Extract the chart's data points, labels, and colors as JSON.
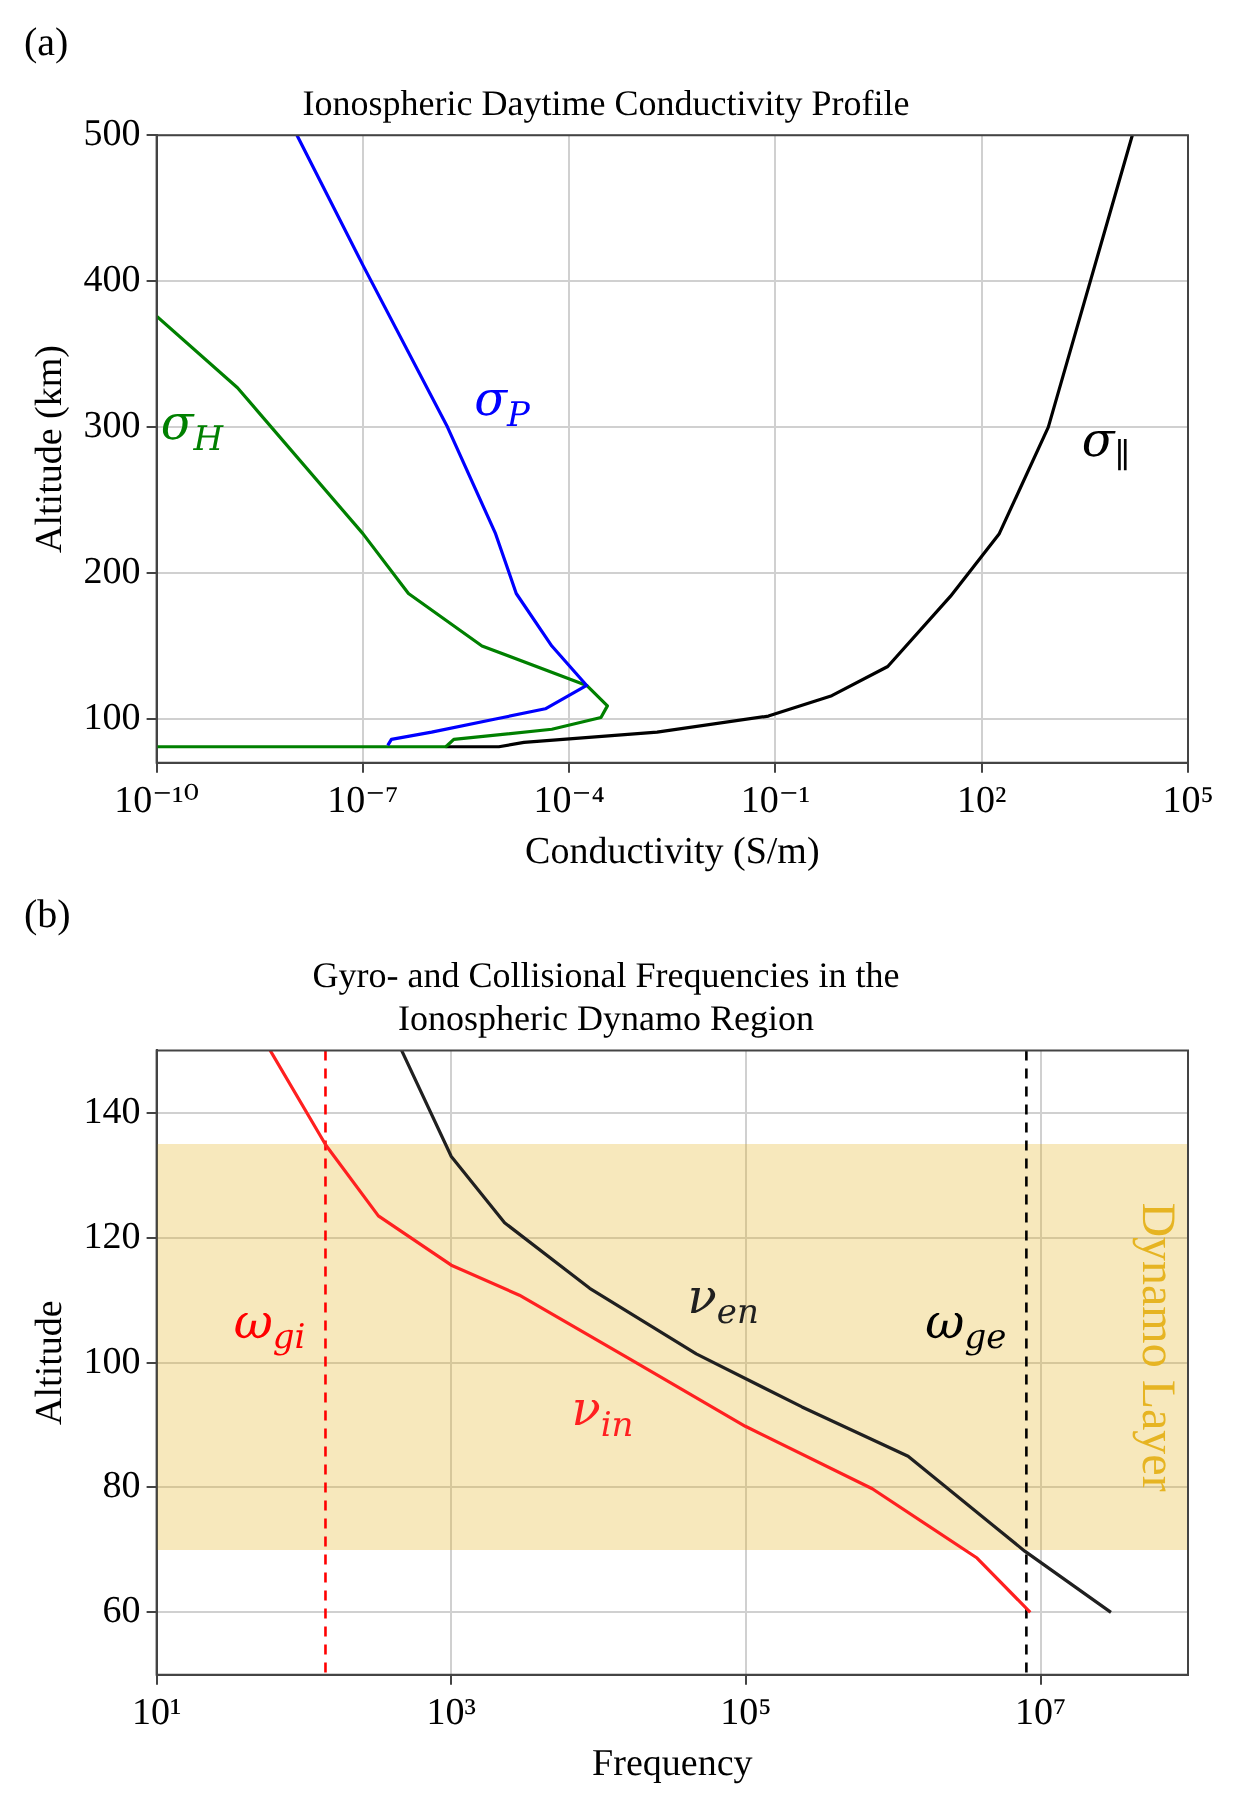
{
  "chart_data": [
    {
      "type": "line",
      "title": "Ionospheric Daytime Conductivity Profile",
      "xlabel": "Conductivity (S/m)",
      "ylabel": "Altitude (km)",
      "log": "x",
      "grid": true,
      "xlim": [
        1e-10,
        100000
      ],
      "xticks": [
        {
          "value": 1e-10,
          "label": "10⁻¹⁰"
        },
        {
          "value": 1e-07,
          "label": "10⁻⁷"
        },
        {
          "value": 0.0001,
          "label": "10⁻⁴"
        },
        {
          "value": 0.1,
          "label": "10⁻¹"
        },
        {
          "value": 100,
          "label": "10²"
        },
        {
          "value": 100000,
          "label": "10⁵"
        }
      ],
      "ylim": [
        70,
        500
      ],
      "yticks": [
        100,
        200,
        300,
        400,
        500
      ],
      "series": [
        {
          "type": "line",
          "name": "σ$_{P}$",
          "color": "#0000ff",
          "x": [
            1.1e-08,
            1e-07,
            1.7e-06,
            8.5e-06,
            1.7e-05,
            5.6e-05,
            0.00018,
            4.5e-05,
            8.5e-06,
            1e-06,
            2.6e-07,
            2.3e-07
          ],
          "values": [
            500,
            411,
            300,
            227,
            186,
            150,
            123,
            107,
            100,
            91,
            86,
            82
          ]
        },
        {
          "type": "line",
          "name": "σ$_{H}$",
          "color": "#008000",
          "x": [
            1e-10,
            1.5e-09,
            1e-07,
            4.6e-07,
            5.4e-06,
            0.00018,
            0.00036,
            0.00029,
            5.6e-05,
            2.1e-06,
            1.7e-06,
            1.6e-06,
            1e-10
          ],
          "values": [
            376,
            327,
            227,
            186,
            150,
            123,
            109,
            101,
            93,
            86,
            82,
            81,
            81
          ]
        },
        {
          "type": "line",
          "name": "σ$_{∥}$",
          "color": "#000000",
          "x": [
            1.6e-06,
            9.5e-06,
            2.2e-05,
            0.0019,
            0.079,
            0.66,
            4.3,
            35,
            180,
            930,
            3800,
            15500
          ],
          "values": [
            81,
            81,
            84,
            91,
            102,
            116,
            136,
            184,
            227,
            300,
            400,
            500
          ]
        }
      ],
      "annotations": [
        "(a)"
      ]
    },
    {
      "type": "line",
      "title": "Gyro- and Collisional Frequencies in the Ionospheric Dynamo Region",
      "xlabel": "Frequency",
      "ylabel": "Altitude",
      "log": "x",
      "grid": true,
      "xlim": [
        10,
        100000000
      ],
      "xticks": [
        {
          "value": 10,
          "label": "10¹"
        },
        {
          "value": 1000,
          "label": "10³"
        },
        {
          "value": 100000,
          "label": "10⁵"
        },
        {
          "value": 10000000,
          "label": "10⁷"
        }
      ],
      "ylim": [
        50,
        150
      ],
      "yticks": [
        60,
        80,
        100,
        120,
        140
      ],
      "series": [
        {
          "type": "line",
          "name": "ν$_{in}$",
          "color": "#ff2020",
          "x": [
            59,
            141,
            320,
            1000,
            2900,
            17000,
            99000,
            720000,
            3700000,
            8500000
          ],
          "values": [
            150,
            134.8,
            123.5,
            115.6,
            110.8,
            100.3,
            89.8,
            79.8,
            68.7,
            60
          ]
        },
        {
          "type": "line",
          "name": "ν$_{en}$",
          "color": "#202020",
          "x": [
            460,
            1000,
            2300,
            8700,
            46000,
            240000,
            1260000,
            7800000,
            30000000
          ],
          "values": [
            150,
            133,
            122.4,
            111.9,
            101.4,
            92.9,
            85,
            69.8,
            60
          ]
        }
      ],
      "bands": [
        {
          "axis": "y",
          "from": 70,
          "to": 135,
          "label": "Dynamo Layer",
          "color": "#e6b422"
        }
      ],
      "ref_lines": [
        {
          "axis": "x",
          "value": 140,
          "label": "ω$_{gi}$",
          "color": "#ff0000",
          "line_style": "dashed"
        },
        {
          "axis": "x",
          "value": 8000000,
          "label": "ω$_{ge}$",
          "color": "#000000",
          "line_style": "dashed"
        }
      ],
      "annotations": [
        "(b)"
      ]
    }
  ]
}
